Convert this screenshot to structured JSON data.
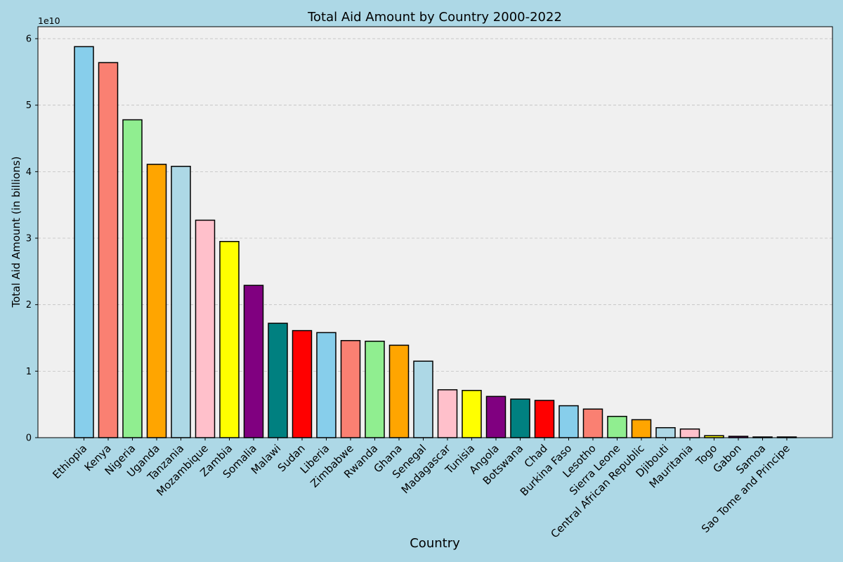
{
  "colors": {
    "figure_background": "#add8e6",
    "plot_background": "#f0f0f0",
    "grid": "#bfbfbf",
    "bar_edge": "#000000",
    "text": "#000000"
  },
  "chart_data": {
    "type": "bar",
    "title": "Total Aid Amount by Country 2000-2022",
    "xlabel": "Country",
    "ylabel": "Total Aid Amount (in billions)",
    "y_offset_label": "1e10",
    "ylim": [
      0,
      6.18
    ],
    "y_ticks": [
      0,
      1,
      2,
      3,
      4,
      5,
      6
    ],
    "y_tick_labels": [
      "0",
      "1",
      "2",
      "3",
      "4",
      "5",
      "6"
    ],
    "grid": "horizontal dashed",
    "categories": [
      "Ethiopia",
      "Kenya",
      "Nigeria",
      "Uganda",
      "Tanzania",
      "Mozambique",
      "Zambia",
      "Somalia",
      "Malawi",
      "Sudan",
      "Liberia",
      "Zimbabwe",
      "Rwanda",
      "Ghana",
      "Senegal",
      "Madagascar",
      "Tunisia",
      "Angola",
      "Botswana",
      "Chad",
      "Burkina Faso",
      "Lesotho",
      "Sierra Leone",
      "Central African Republic",
      "Djibouti",
      "Mauritania",
      "Togo",
      "Gabon",
      "Samoa",
      "Sao Tome and Principe"
    ],
    "values": [
      5.88,
      5.64,
      4.78,
      4.11,
      4.08,
      3.27,
      2.95,
      2.29,
      1.72,
      1.61,
      1.58,
      1.46,
      1.45,
      1.39,
      1.15,
      0.72,
      0.71,
      0.62,
      0.58,
      0.56,
      0.48,
      0.43,
      0.32,
      0.27,
      0.15,
      0.13,
      0.03,
      0.02,
      0.01,
      0.01
    ],
    "bar_colors": [
      "#87ceeb",
      "#fa8072",
      "#90ee90",
      "#ffa500",
      "#add8e6",
      "#ffc0cb",
      "#ffff00",
      "#800080",
      "#008080",
      "#ff0000",
      "#87ceeb",
      "#fa8072",
      "#90ee90",
      "#ffa500",
      "#add8e6",
      "#ffc0cb",
      "#ffff00",
      "#800080",
      "#008080",
      "#ff0000",
      "#87ceeb",
      "#fa8072",
      "#90ee90",
      "#ffa500",
      "#add8e6",
      "#ffc0cb",
      "#ffff00",
      "#800080",
      "#008080",
      "#ff0000"
    ]
  }
}
